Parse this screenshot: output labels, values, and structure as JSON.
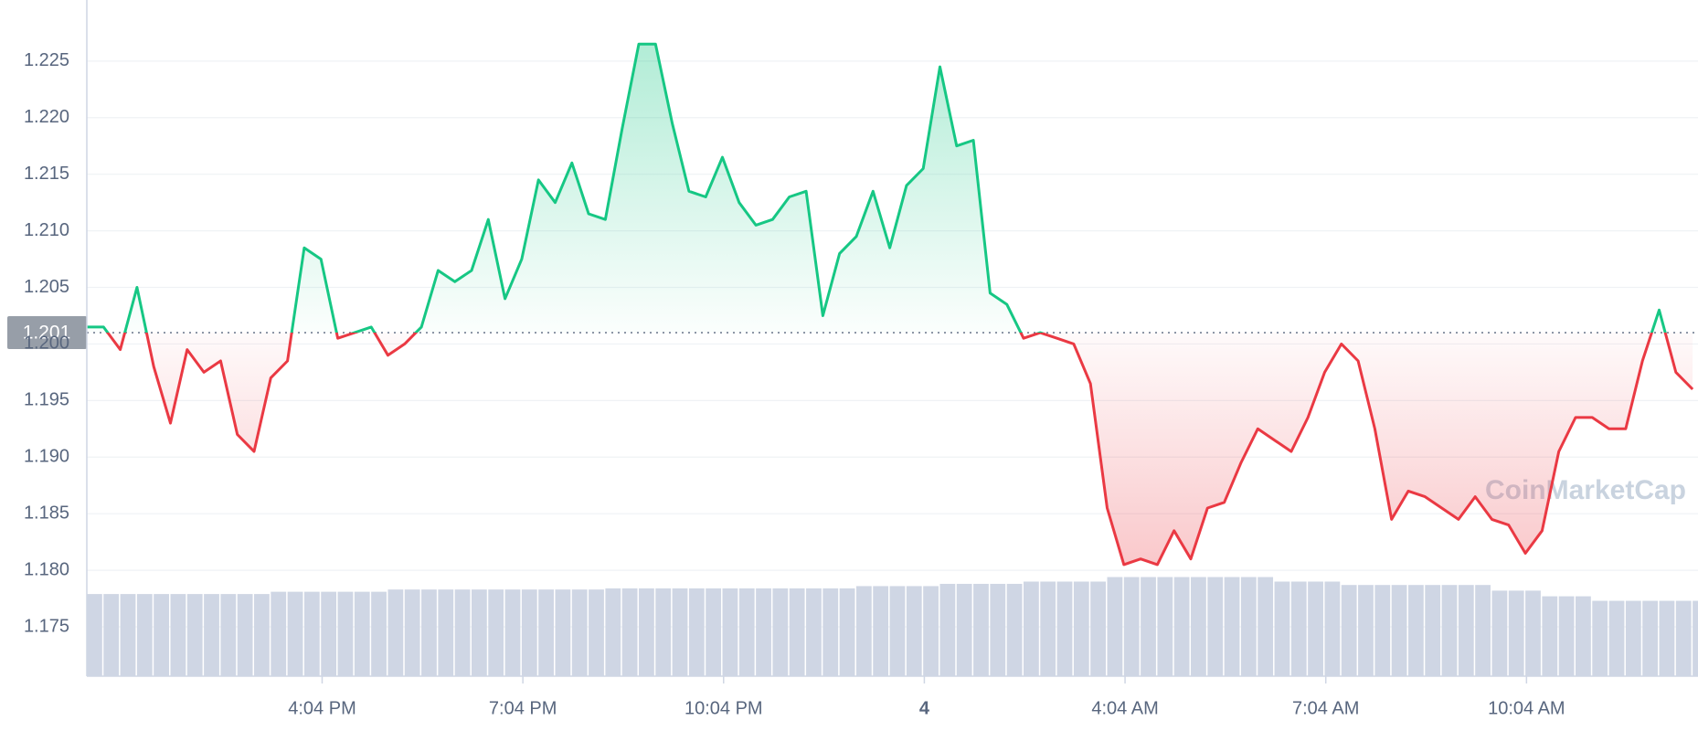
{
  "chart_data": {
    "type": "line",
    "watermark": "CoinMarketCap",
    "reference": 1.201,
    "up_color": "#16c784",
    "down_color": "#ea3943",
    "volume_color": "#cfd6e4",
    "xlim": [
      12.55,
      36.63
    ],
    "ylim": [
      1.17064,
      1.2304
    ],
    "xticks": [
      {
        "value": 16.067,
        "label": "4:04 PM"
      },
      {
        "value": 19.067,
        "label": "7:04 PM"
      },
      {
        "value": 22.067,
        "label": "10:04 PM"
      },
      {
        "value": 25.067,
        "label": "4"
      },
      {
        "value": 28.067,
        "label": "4:04 AM"
      },
      {
        "value": 31.067,
        "label": "7:04 AM"
      },
      {
        "value": 34.067,
        "label": "10:04 AM"
      }
    ],
    "yticks": [
      1.175,
      {
        "value": 1.18,
        "label": "1.180"
      },
      1.185,
      {
        "value": 1.19,
        "label": "1.190"
      },
      1.195,
      {
        "value": 1.2,
        "label": "1.200"
      },
      1.205,
      {
        "value": 1.21,
        "label": "1.210"
      },
      1.215,
      {
        "value": 1.22,
        "label": "1.220"
      },
      1.225
    ],
    "grid": true,
    "x": [
      12.55,
      12.8,
      13.05,
      13.3,
      13.55,
      13.8,
      14.05,
      14.3,
      14.55,
      14.8,
      15.05,
      15.3,
      15.55,
      15.8,
      16.05,
      16.3,
      16.55,
      16.8,
      17.05,
      17.3,
      17.55,
      17.8,
      18.05,
      18.3,
      18.55,
      18.8,
      19.05,
      19.3,
      19.55,
      19.8,
      20.05,
      20.3,
      20.55,
      20.8,
      21.05,
      21.3,
      21.55,
      21.8,
      22.05,
      22.3,
      22.55,
      22.8,
      23.05,
      23.3,
      23.55,
      23.8,
      24.05,
      24.3,
      24.55,
      24.8,
      25.05,
      25.3,
      25.55,
      25.8,
      26.05,
      26.3,
      26.55,
      26.8,
      27.05,
      27.3,
      27.55,
      27.8,
      28.05,
      28.3,
      28.55,
      28.8,
      29.05,
      29.3,
      29.55,
      29.8,
      30.05,
      30.3,
      30.55,
      30.8,
      31.05,
      31.3,
      31.55,
      31.8,
      32.05,
      32.3,
      32.55,
      32.8,
      33.05,
      33.3,
      33.55,
      33.8,
      34.05,
      34.3,
      34.55,
      34.8,
      35.05,
      35.3,
      35.55,
      35.8,
      36.05,
      36.3,
      36.55
    ],
    "values": [
      1.2015,
      1.2015,
      1.1995,
      1.205,
      1.198,
      1.193,
      1.1995,
      1.1975,
      1.1985,
      1.192,
      1.1905,
      1.197,
      1.1985,
      1.2085,
      1.2075,
      1.2005,
      1.201,
      1.2015,
      1.199,
      1.2,
      1.2015,
      1.2065,
      1.2055,
      1.2065,
      1.211,
      1.204,
      1.2075,
      1.2145,
      1.2125,
      1.216,
      1.2115,
      1.211,
      1.219,
      1.2265,
      1.2265,
      1.2195,
      1.2135,
      1.213,
      1.2165,
      1.2125,
      1.2105,
      1.211,
      1.213,
      1.2135,
      1.2025,
      1.208,
      1.2095,
      1.2135,
      1.2085,
      1.214,
      1.2155,
      1.2245,
      1.2175,
      1.218,
      1.2045,
      1.2035,
      1.2005,
      1.201,
      1.2005,
      1.2,
      1.1965,
      1.1855,
      1.1805,
      1.181,
      1.1805,
      1.1835,
      1.181,
      1.1855,
      1.186,
      1.1895,
      1.1925,
      1.1915,
      1.1905,
      1.1935,
      1.1975,
      1.2,
      1.1985,
      1.1925,
      1.1845,
      1.187,
      1.1865,
      1.1855,
      1.1845,
      1.1865,
      1.1845,
      1.184,
      1.1815,
      1.1835,
      1.1905,
      1.1935,
      1.1935,
      1.1925,
      1.1925,
      1.1985,
      1.203,
      1.1975,
      1.196
    ],
    "volume_values": [
      1.1779,
      1.1779,
      1.1779,
      1.1779,
      1.1779,
      1.1779,
      1.1779,
      1.1779,
      1.1779,
      1.1779,
      1.1779,
      1.1781,
      1.1781,
      1.1781,
      1.1781,
      1.1781,
      1.1781,
      1.1781,
      1.1783,
      1.1783,
      1.1783,
      1.1783,
      1.1783,
      1.1783,
      1.1783,
      1.1783,
      1.1783,
      1.1783,
      1.1783,
      1.1783,
      1.1783,
      1.1784,
      1.1784,
      1.1784,
      1.1784,
      1.1784,
      1.1784,
      1.1784,
      1.1784,
      1.1784,
      1.1784,
      1.1784,
      1.1784,
      1.1784,
      1.1784,
      1.1784,
      1.1786,
      1.1786,
      1.1786,
      1.1786,
      1.1786,
      1.1788,
      1.1788,
      1.1788,
      1.1788,
      1.1788,
      1.179,
      1.179,
      1.179,
      1.179,
      1.179,
      1.1794,
      1.1794,
      1.1794,
      1.1794,
      1.1794,
      1.1794,
      1.1794,
      1.1794,
      1.1794,
      1.1794,
      1.179,
      1.179,
      1.179,
      1.179,
      1.1787,
      1.1787,
      1.1787,
      1.1787,
      1.1787,
      1.1787,
      1.1787,
      1.1787,
      1.1787,
      1.1782,
      1.1782,
      1.1782,
      1.1777,
      1.1777,
      1.1777,
      1.1773,
      1.1773,
      1.1773,
      1.1773,
      1.1773,
      1.1773,
      1.1773
    ]
  }
}
